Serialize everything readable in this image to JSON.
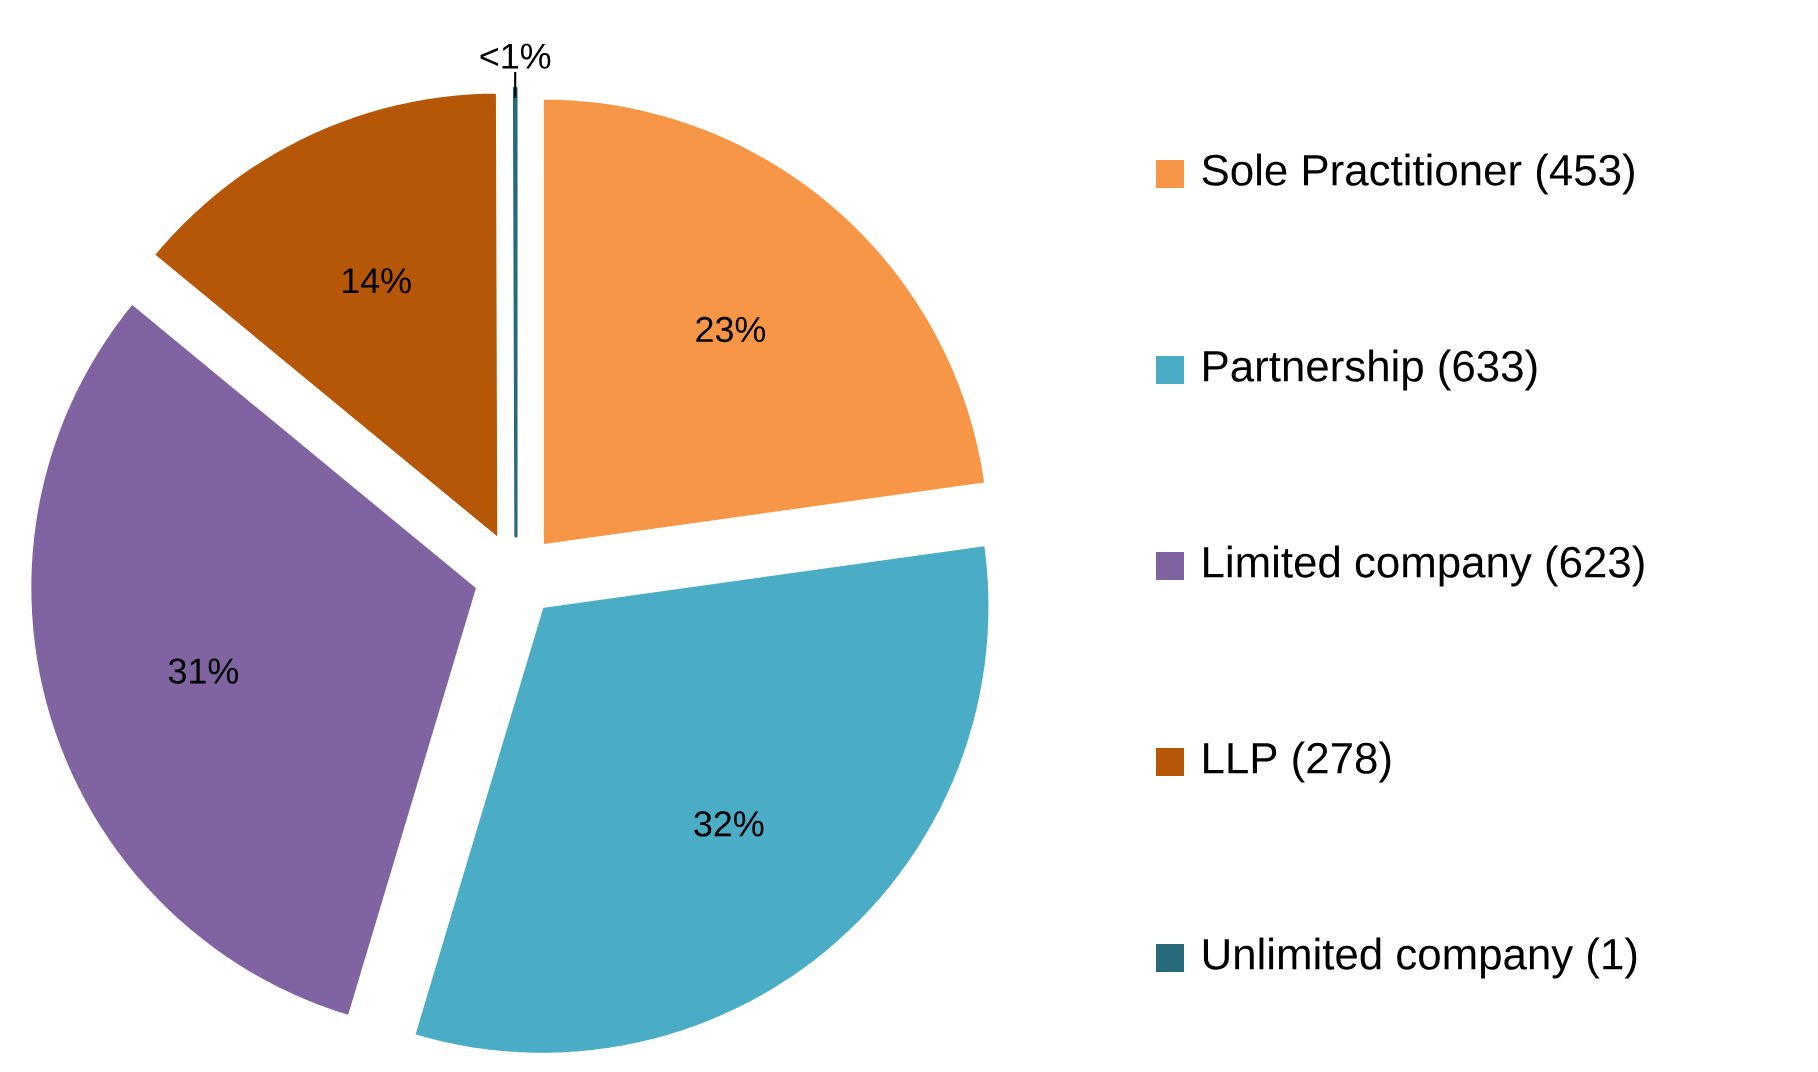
{
  "chart_data": {
    "type": "pie",
    "categories": [
      "Sole Practitioner (453)",
      "Partnership (633)",
      "Limited company (623)",
      "LLP (278)",
      "Unlimited company (1)"
    ],
    "values": [
      22.79,
      31.84,
      31.34,
      13.98,
      0.05
    ],
    "colors": [
      "#f79646",
      "#4bacc6",
      "#8064a2",
      "#b65708",
      "#276a7b"
    ],
    "value_labels": [
      "23%",
      "32%",
      "31%",
      "14%",
      "<1%"
    ],
    "legend": "right"
  }
}
